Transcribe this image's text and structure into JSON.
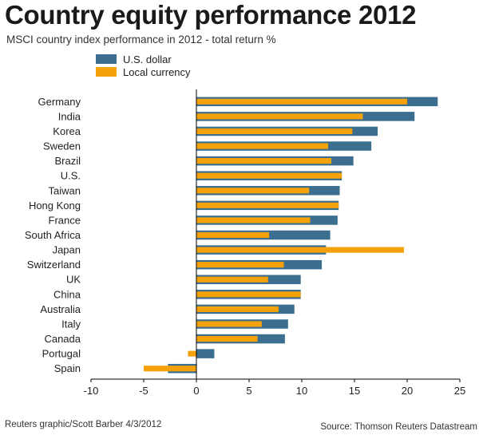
{
  "title": "Country equity performance 2012",
  "subtitle": "MSCI country index performance in 2012 - total return %",
  "legend": [
    {
      "label": "U.S. dollar",
      "color": "#3b6e8f"
    },
    {
      "label": "Local currency",
      "color": "#f5a20a"
    }
  ],
  "footer": {
    "credit": "Reuters graphic/Scott Barber 4/3/2012",
    "source": "Source: Thomson Reuters Datastream"
  },
  "chart_data": {
    "type": "bar",
    "orientation": "horizontal",
    "categories": [
      "Germany",
      "India",
      "Korea",
      "Sweden",
      "Brazil",
      "U.S.",
      "Taiwan",
      "Hong Kong",
      "France",
      "South Africa",
      "Japan",
      "Switzerland",
      "UK",
      "China",
      "Australia",
      "Italy",
      "Canada",
      "Portugal",
      "Spain"
    ],
    "series": [
      {
        "name": "U.S. dollar",
        "color": "#3b6e8f",
        "values": [
          22.9,
          20.7,
          17.2,
          16.6,
          14.9,
          13.8,
          13.6,
          13.5,
          13.4,
          12.7,
          12.3,
          11.9,
          9.9,
          9.9,
          9.3,
          8.7,
          8.4,
          1.7,
          -2.7
        ]
      },
      {
        "name": "Local currency",
        "color": "#f5a20a",
        "values": [
          20.0,
          15.8,
          14.8,
          12.5,
          12.8,
          13.8,
          10.7,
          13.5,
          10.8,
          6.9,
          19.7,
          8.3,
          6.8,
          9.9,
          7.8,
          6.2,
          5.8,
          -0.8,
          -5.0
        ]
      }
    ],
    "xlim": [
      -10,
      25
    ],
    "xticks": [
      -10,
      -5,
      0,
      5,
      10,
      15,
      20,
      25
    ],
    "grid": false,
    "legend_position": "top-left"
  }
}
